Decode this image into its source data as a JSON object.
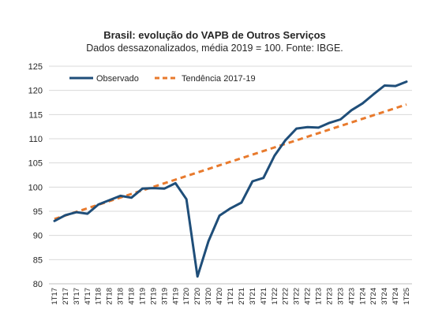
{
  "chart_data": {
    "type": "line",
    "title": "Brasil: evolução do VAPB de Outros Serviços",
    "subtitle": "Dados dessazonalizados, média 2019 = 100. Fonte: IBGE.",
    "xlabel": "",
    "ylabel": "",
    "ylim": [
      80,
      125
    ],
    "yticks": [
      80,
      85,
      90,
      95,
      100,
      105,
      110,
      115,
      120,
      125
    ],
    "grid": true,
    "legend_position": "top-left",
    "categories": [
      "1T17",
      "2T17",
      "3T17",
      "4T17",
      "1T18",
      "2T18",
      "3T18",
      "4T18",
      "1T19",
      "2T19",
      "3T19",
      "4T19",
      "1T20",
      "2T20",
      "3T20",
      "4T20",
      "1T21",
      "2T21",
      "3T21",
      "4T21",
      "1T22",
      "2T22",
      "3T22",
      "4T22",
      "1T23",
      "2T23",
      "3T23",
      "4T23",
      "1T24",
      "2T24",
      "3T24",
      "4T24",
      "1T25"
    ],
    "series": [
      {
        "name": "Observado",
        "color": "#1f4e79",
        "style": "solid",
        "values": [
          93.0,
          94.2,
          94.8,
          94.5,
          96.4,
          97.3,
          98.2,
          97.8,
          99.7,
          99.8,
          99.7,
          100.8,
          97.5,
          81.5,
          88.8,
          94.1,
          95.6,
          96.8,
          101.2,
          101.9,
          106.5,
          109.7,
          112.1,
          112.4,
          112.3,
          113.3,
          114.0,
          115.9,
          117.3,
          119.2,
          121.0,
          120.9,
          121.8
        ]
      },
      {
        "name": "Tendência 2017-19",
        "color": "#e87a2d",
        "style": "dashed",
        "values": [
          93.4,
          94.14,
          94.88,
          95.62,
          96.36,
          97.1,
          97.84,
          98.58,
          99.32,
          100.06,
          100.8,
          101.54,
          102.28,
          103.02,
          103.76,
          104.5,
          105.24,
          105.98,
          106.72,
          107.46,
          108.2,
          108.94,
          109.68,
          110.42,
          111.16,
          111.9,
          112.64,
          113.38,
          114.12,
          114.86,
          115.6,
          116.34,
          117.08
        ]
      }
    ]
  }
}
